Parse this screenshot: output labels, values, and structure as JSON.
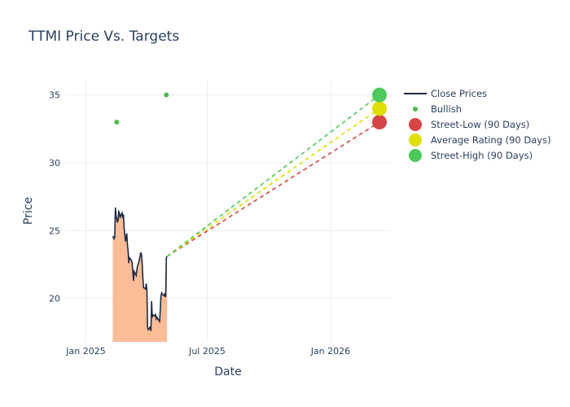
{
  "chart_data": {
    "type": "line",
    "title": "TTMI Price Vs. Targets",
    "xlabel": "Date",
    "ylabel": "Price",
    "xlim": [
      "2024-12-01",
      "2026-04-01"
    ],
    "ylim": [
      16.8,
      36
    ],
    "x_ticks": [
      {
        "date": "2025-01-01",
        "label": "Jan 2025"
      },
      {
        "date": "2025-07-01",
        "label": "Jul 2025"
      },
      {
        "date": "2026-01-01",
        "label": "Jan 2026"
      }
    ],
    "y_ticks": [
      20,
      25,
      30,
      35
    ],
    "grid": true,
    "legend_position": "top-right",
    "series": [
      {
        "name": "Close Prices",
        "type": "line-area",
        "color": "#1f2a44",
        "fill_color": "#fbbd98",
        "points": [
          [
            "2025-02-10",
            24.6
          ],
          [
            "2025-02-11",
            24.5
          ],
          [
            "2025-02-12",
            24.4
          ],
          [
            "2025-02-13",
            24.5
          ],
          [
            "2025-02-14",
            26.7
          ],
          [
            "2025-02-15",
            26.1
          ],
          [
            "2025-02-17",
            25.6
          ],
          [
            "2025-02-18",
            25.8
          ],
          [
            "2025-02-19",
            26.4
          ],
          [
            "2025-02-20",
            26.3
          ],
          [
            "2025-02-21",
            26.0
          ],
          [
            "2025-02-24",
            26.3
          ],
          [
            "2025-02-25",
            25.9
          ],
          [
            "2025-02-26",
            26.2
          ],
          [
            "2025-02-27",
            25.2
          ],
          [
            "2025-02-28",
            24.7
          ],
          [
            "2025-03-01",
            24.2
          ],
          [
            "2025-03-03",
            24.8
          ],
          [
            "2025-03-04",
            23.9
          ],
          [
            "2025-03-05",
            23.5
          ],
          [
            "2025-03-06",
            22.6
          ],
          [
            "2025-03-07",
            23.0
          ],
          [
            "2025-03-10",
            22.8
          ],
          [
            "2025-03-11",
            22.6
          ],
          [
            "2025-03-12",
            22.0
          ],
          [
            "2025-03-13",
            21.3
          ],
          [
            "2025-03-14",
            22.0
          ],
          [
            "2025-03-17",
            21.7
          ],
          [
            "2025-03-18",
            22.1
          ],
          [
            "2025-03-19",
            22.4
          ],
          [
            "2025-03-20",
            22.5
          ],
          [
            "2025-03-21",
            22.7
          ],
          [
            "2025-03-24",
            23.4
          ],
          [
            "2025-03-25",
            23.2
          ],
          [
            "2025-03-26",
            22.5
          ],
          [
            "2025-03-27",
            21.5
          ],
          [
            "2025-03-28",
            20.8
          ],
          [
            "2025-03-31",
            20.7
          ],
          [
            "2025-04-01",
            21.1
          ],
          [
            "2025-04-02",
            20.6
          ],
          [
            "2025-04-03",
            17.9
          ],
          [
            "2025-04-04",
            17.7
          ],
          [
            "2025-04-07",
            17.9
          ],
          [
            "2025-04-08",
            17.6
          ],
          [
            "2025-04-09",
            19.8
          ],
          [
            "2025-04-10",
            18.6
          ],
          [
            "2025-04-11",
            18.8
          ],
          [
            "2025-04-14",
            18.7
          ],
          [
            "2025-04-15",
            18.8
          ],
          [
            "2025-04-16",
            18.5
          ],
          [
            "2025-04-17",
            18.6
          ],
          [
            "2025-04-21",
            18.3
          ],
          [
            "2025-04-22",
            19.2
          ],
          [
            "2025-04-23",
            20.2
          ],
          [
            "2025-04-24",
            20.4
          ],
          [
            "2025-04-25",
            20.3
          ],
          [
            "2025-04-28",
            20.2
          ],
          [
            "2025-04-29",
            20.4
          ],
          [
            "2025-04-30",
            20.1
          ],
          [
            "2025-05-01",
            23.0
          ],
          [
            "2025-05-02",
            23.1
          ]
        ]
      },
      {
        "name": "Bullish",
        "type": "scatter",
        "color": "#4cbb4c",
        "points": [
          [
            "2025-02-16",
            33
          ],
          [
            "2025-05-01",
            35
          ]
        ]
      },
      {
        "name": "Street-Low (90 Days)",
        "type": "target",
        "color": "#d64545",
        "start": [
          "2025-05-02",
          23.1
        ],
        "end": [
          "2026-03-15",
          33
        ]
      },
      {
        "name": "Average Rating (90 Days)",
        "type": "target",
        "color": "#dede00",
        "start": [
          "2025-05-02",
          23.1
        ],
        "end": [
          "2026-03-15",
          34
        ]
      },
      {
        "name": "Street-High (90 Days)",
        "type": "target",
        "color": "#4cc95a",
        "start": [
          "2025-05-02",
          23.1
        ],
        "end": [
          "2026-03-15",
          35
        ]
      }
    ]
  }
}
